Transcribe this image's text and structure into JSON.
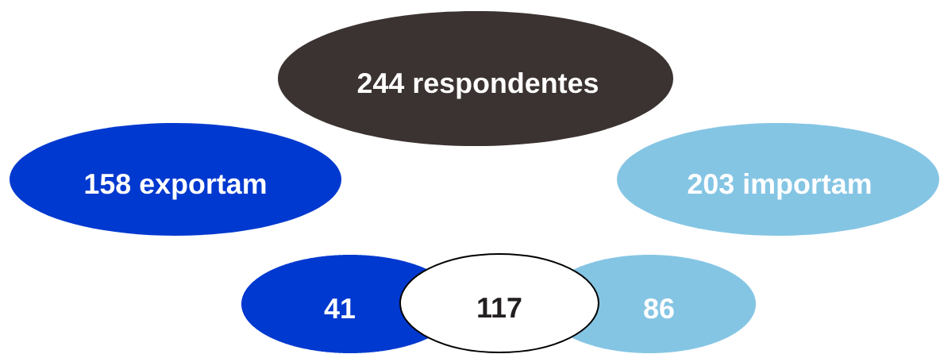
{
  "chart_data": {
    "type": "other",
    "categories": [
      "respondentes",
      "exportam",
      "importam",
      null,
      null,
      null
    ],
    "values": [
      244,
      158,
      203,
      41,
      117,
      86
    ],
    "colors": [
      "#3b3331",
      "#0039cf",
      "#85c5e4",
      "#0039cf",
      "#ffffff",
      "#85c5e4"
    ],
    "data_labels": true
  }
}
